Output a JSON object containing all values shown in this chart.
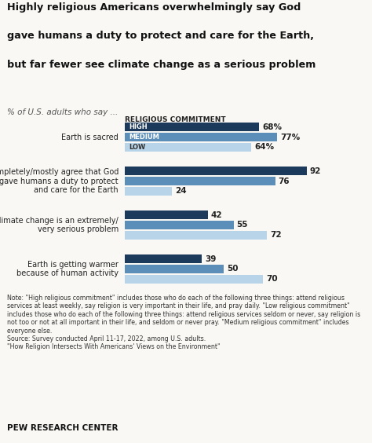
{
  "title_line1": "Highly religious Americans overwhelmingly say God",
  "title_line2": "gave humans a duty to protect and care for the Earth,",
  "title_line3": "but far fewer see climate change as a serious problem",
  "subtitle": "% of U.S. adults who say ...",
  "legend_title": "RELIGIOUS COMMITMENT",
  "categories": [
    "Earth is sacred",
    "Completely/mostly agree that God\ngave humans a duty to protect\nand care for the Earth",
    "Climate change is an extremely/\nvery serious problem",
    "Earth is getting warmer\nbecause of human activity"
  ],
  "series": {
    "HIGH": [
      68,
      92,
      42,
      39
    ],
    "MEDIUM": [
      77,
      76,
      55,
      50
    ],
    "LOW": [
      64,
      24,
      72,
      70
    ]
  },
  "value_labels_high": [
    "68%",
    "92",
    "42",
    "39"
  ],
  "value_labels_medium": [
    "77%",
    "76",
    "55",
    "50"
  ],
  "value_labels_low": [
    "64%",
    "24",
    "72",
    "70"
  ],
  "colors": {
    "HIGH": "#1b3a5c",
    "MEDIUM": "#5b8fb9",
    "LOW": "#b8d4e8"
  },
  "bar_height": 0.25,
  "note": "Note: \"High religious commitment\" includes those who do each of the following three things: attend religious services at least weekly, say religion is very important in their life, and pray daily. \"Low religious commitment\" includes those who do each of the following three things: attend religious services seldom or never, say religion is not too or not at all important in their life, and seldom or never pray. \"Medium religious commitment\" includes everyone else.",
  "source1": "Source: Survey conducted April 11-17, 2022, among U.S. adults.",
  "source2": "\"How Religion Intersects With Americans' Views on the Environment\"",
  "footer": "PEW RESEARCH CENTER",
  "background_color": "#f9f8f4",
  "xlim": [
    0,
    100
  ]
}
